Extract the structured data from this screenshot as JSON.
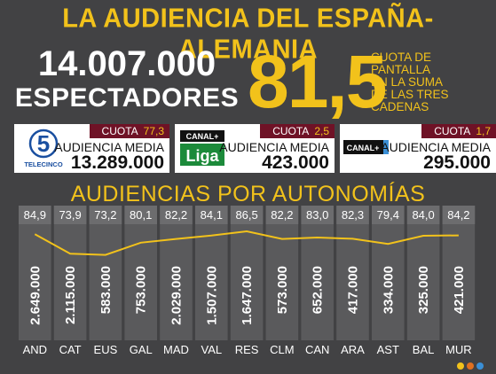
{
  "header": {
    "title": "LA AUDIENCIA DEL ESPAÑA-ALEMANIA",
    "viewers": "14.007.000",
    "viewers_label": "ESPECTADORES",
    "share": "81,5",
    "share_note_lines": [
      "CUOTA DE",
      "PANTALLA",
      "EN LA SUMA",
      "DE LAS  TRES",
      "CADENAS"
    ]
  },
  "channels": [
    {
      "logo": "telecinco-logo",
      "logo_text": "TELECINCO",
      "quota_label": "CUOTA",
      "quota": "77,3",
      "audience_label": "AUDIENCIA MEDIA",
      "audience": "13.289.000"
    },
    {
      "logo": "canal-plus-liga-logo",
      "logo_text": "CANAL+",
      "logo_sub": "Liga",
      "quota_label": "CUOTA",
      "quota": "2,5",
      "audience_label": "AUDIENCIA MEDIA",
      "audience": "423.000"
    },
    {
      "logo": "canal-plus-logo",
      "logo_text": "CANAL+",
      "quota_label": "CUOTA",
      "quota": "1,7",
      "audience_label": "AUDIENCIA MEDIA",
      "audience": "295.000"
    }
  ],
  "chart_title": "AUDIENCIAS POR AUTONOMÍAS",
  "chart_data": {
    "type": "bar",
    "title": "AUDIENCIAS POR AUTONOMÍAS",
    "categories": [
      "AND",
      "CAT",
      "EUS",
      "GAL",
      "MAD",
      "VAL",
      "RES",
      "CLM",
      "CAN",
      "ARA",
      "AST",
      "BAL",
      "MUR"
    ],
    "series": [
      {
        "values": [
          2649000,
          2115000,
          583000,
          753000,
          2029000,
          1507000,
          1647000,
          573000,
          652000,
          417000,
          334000,
          325000,
          421000
        ],
        "value_labels": [
          "2.649.000",
          "2.115.000",
          "583.000",
          "753.000",
          "2.029.000",
          "1.507.000",
          "1.647.000",
          "573.000",
          "652.000",
          "417.000",
          "334.000",
          "325.000",
          "421.000"
        ]
      },
      {
        "values": [
          84.9,
          73.9,
          73.2,
          80.1,
          82.2,
          84.1,
          86.5,
          82.2,
          83.0,
          82.3,
          79.4,
          84.0,
          84.2
        ],
        "value_labels": [
          "84,9",
          "73,9",
          "73,2",
          "80,1",
          "82,2",
          "84,1",
          "86,5",
          "82,2",
          "83,0",
          "82,3",
          "79,4",
          "84,0",
          "84,2"
        ]
      }
    ],
    "line_range": [
      70,
      90
    ]
  },
  "colors": {
    "background": "#424244",
    "accent": "#f2c21b",
    "quota_bg": "#6f1226",
    "column": "#5a5a5c",
    "column_header": "#6c6c6e",
    "dots": [
      "#f2c21b",
      "#e07020",
      "#3a8fd6"
    ]
  }
}
